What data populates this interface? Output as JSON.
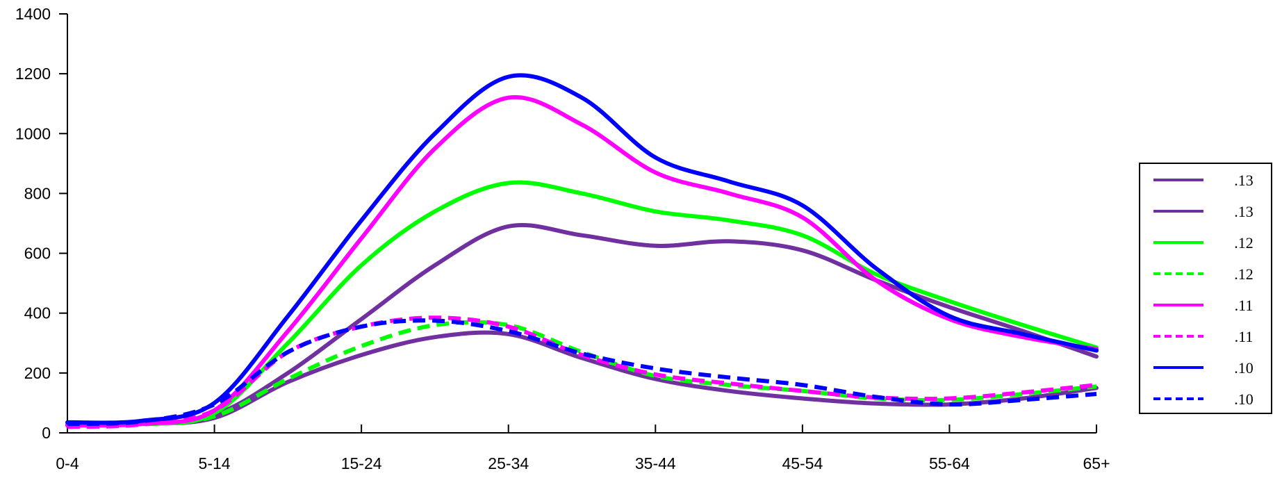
{
  "chart_data": {
    "type": "line",
    "categories": [
      "0-4",
      "5-14",
      "15-24",
      "25-34",
      "35-44",
      "45-54",
      "55-64",
      "65+"
    ],
    "ylim": [
      0,
      1400
    ],
    "yticks": [
      "0",
      "200",
      "400",
      "600",
      "800",
      "1000",
      "1200",
      "1400"
    ],
    "grid": false,
    "legend_position": "right",
    "series": [
      {
        "name": ".13",
        "color": "#7030A0",
        "dash": false,
        "x": [
          0,
          0.5,
          1,
          1.5,
          2,
          2.5,
          3,
          3.5,
          4,
          4.5,
          5,
          5.5,
          6,
          6.5,
          7
        ],
        "values": [
          25,
          30,
          60,
          200,
          380,
          560,
          690,
          660,
          625,
          640,
          610,
          510,
          420,
          340,
          255
        ]
      },
      {
        "name": ".13",
        "color": "#7030A0",
        "dash": false,
        "x": [
          0,
          0.5,
          1,
          1.5,
          2,
          2.5,
          3,
          3.5,
          4,
          4.5,
          5,
          5.5,
          6,
          6.5,
          7
        ],
        "values": [
          28,
          30,
          50,
          170,
          260,
          320,
          330,
          250,
          180,
          140,
          115,
          98,
          95,
          115,
          150
        ]
      },
      {
        "name": ".12",
        "color": "#00FF00",
        "dash": false,
        "x": [
          0,
          0.5,
          1,
          1.5,
          2,
          2.5,
          3,
          3.5,
          4,
          4.5,
          5,
          5.5,
          6,
          6.5,
          7
        ],
        "values": [
          25,
          30,
          65,
          300,
          560,
          740,
          835,
          800,
          740,
          710,
          660,
          530,
          440,
          360,
          285
        ]
      },
      {
        "name": ".12",
        "color": "#00FF00",
        "dash": true,
        "x": [
          0,
          0.5,
          1,
          1.5,
          2,
          2.5,
          3,
          3.5,
          4,
          4.5,
          5,
          5.5,
          6,
          6.5,
          7
        ],
        "values": [
          25,
          28,
          55,
          180,
          290,
          360,
          360,
          270,
          190,
          160,
          140,
          115,
          110,
          130,
          155
        ]
      },
      {
        "name": ".11",
        "color": "#FF00FF",
        "dash": false,
        "x": [
          0,
          0.5,
          1,
          1.5,
          2,
          2.5,
          3,
          3.5,
          4,
          4.5,
          5,
          5.5,
          6,
          6.5,
          7
        ],
        "values": [
          25,
          30,
          75,
          340,
          650,
          950,
          1120,
          1030,
          870,
          800,
          720,
          510,
          380,
          320,
          280
        ]
      },
      {
        "name": ".11",
        "color": "#FF00FF",
        "dash": true,
        "x": [
          0,
          0.5,
          1,
          1.5,
          2,
          2.5,
          3,
          3.5,
          4,
          4.5,
          5,
          5.5,
          6,
          6.5,
          7
        ],
        "values": [
          20,
          28,
          75,
          270,
          355,
          385,
          355,
          260,
          195,
          165,
          140,
          118,
          115,
          135,
          160
        ]
      },
      {
        "name": ".10",
        "color": "#0000FF",
        "dash": false,
        "x": [
          0,
          0.5,
          1,
          1.5,
          2,
          2.5,
          3,
          3.5,
          4,
          4.5,
          5,
          5.5,
          6,
          6.5,
          7
        ],
        "values": [
          35,
          40,
          100,
          390,
          710,
          1000,
          1190,
          1120,
          920,
          840,
          760,
          550,
          390,
          330,
          275
        ]
      },
      {
        "name": ".10",
        "color": "#0000FF",
        "dash": true,
        "x": [
          0,
          0.5,
          1,
          1.5,
          2,
          2.5,
          3,
          3.5,
          4,
          4.5,
          5,
          5.5,
          6,
          6.5,
          7
        ],
        "values": [
          30,
          38,
          95,
          270,
          355,
          375,
          340,
          265,
          215,
          185,
          160,
          120,
          95,
          110,
          130
        ]
      }
    ]
  }
}
